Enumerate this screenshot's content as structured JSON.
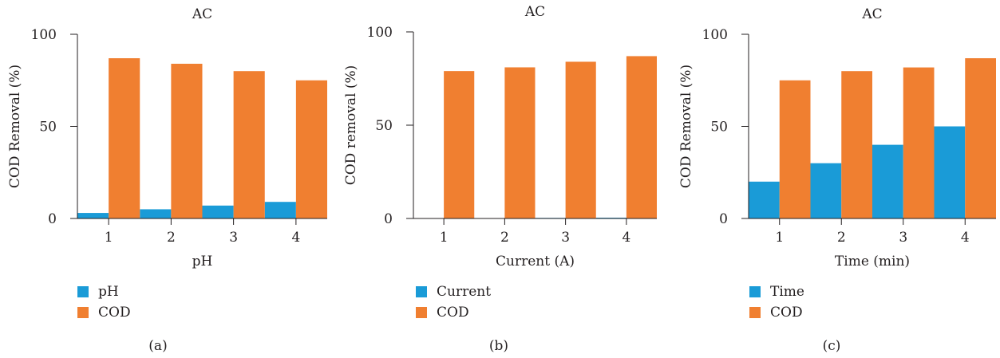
{
  "colors": {
    "series1": "#1a9bd7",
    "series2": "#f07f30",
    "axis": "#231f20"
  },
  "chart_data": [
    {
      "type": "bar",
      "panel_label": "(a)",
      "title": "AC",
      "xlabel": "pH",
      "ylabel": "COD Removal (%)",
      "categories": [
        "1",
        "2",
        "3",
        "4"
      ],
      "yticks": [
        "0",
        "50",
        "100"
      ],
      "ylim": [
        0,
        100
      ],
      "grid": false,
      "legend_position": "bottom-left",
      "series": [
        {
          "name": "pH",
          "values": [
            3,
            5,
            7,
            9
          ]
        },
        {
          "name": "COD",
          "values": [
            87,
            84,
            80,
            75
          ]
        }
      ]
    },
    {
      "type": "bar",
      "panel_label": "(b)",
      "title": "AC",
      "xlabel": "Current (A)",
      "ylabel": "COD removal (%)",
      "categories": [
        "1",
        "2",
        "3",
        "4"
      ],
      "yticks": [
        "0",
        "50",
        "100"
      ],
      "ylim": [
        0,
        100
      ],
      "grid": false,
      "legend_position": "bottom-left",
      "series": [
        {
          "name": "Current",
          "values": [
            0.1,
            0.2,
            0.3,
            0.4
          ]
        },
        {
          "name": "COD",
          "values": [
            79,
            81,
            84,
            87
          ]
        }
      ]
    },
    {
      "type": "bar",
      "panel_label": "(c)",
      "title": "AC",
      "xlabel": "Time (min)",
      "ylabel": "COD Removal (%)",
      "categories": [
        "1",
        "2",
        "3",
        "4"
      ],
      "yticks": [
        "0",
        "50",
        "100"
      ],
      "ylim": [
        0,
        100
      ],
      "grid": false,
      "legend_position": "bottom-left",
      "series": [
        {
          "name": "Time",
          "values": [
            20,
            30,
            40,
            50
          ]
        },
        {
          "name": "COD",
          "values": [
            75,
            80,
            82,
            87
          ]
        }
      ]
    }
  ]
}
